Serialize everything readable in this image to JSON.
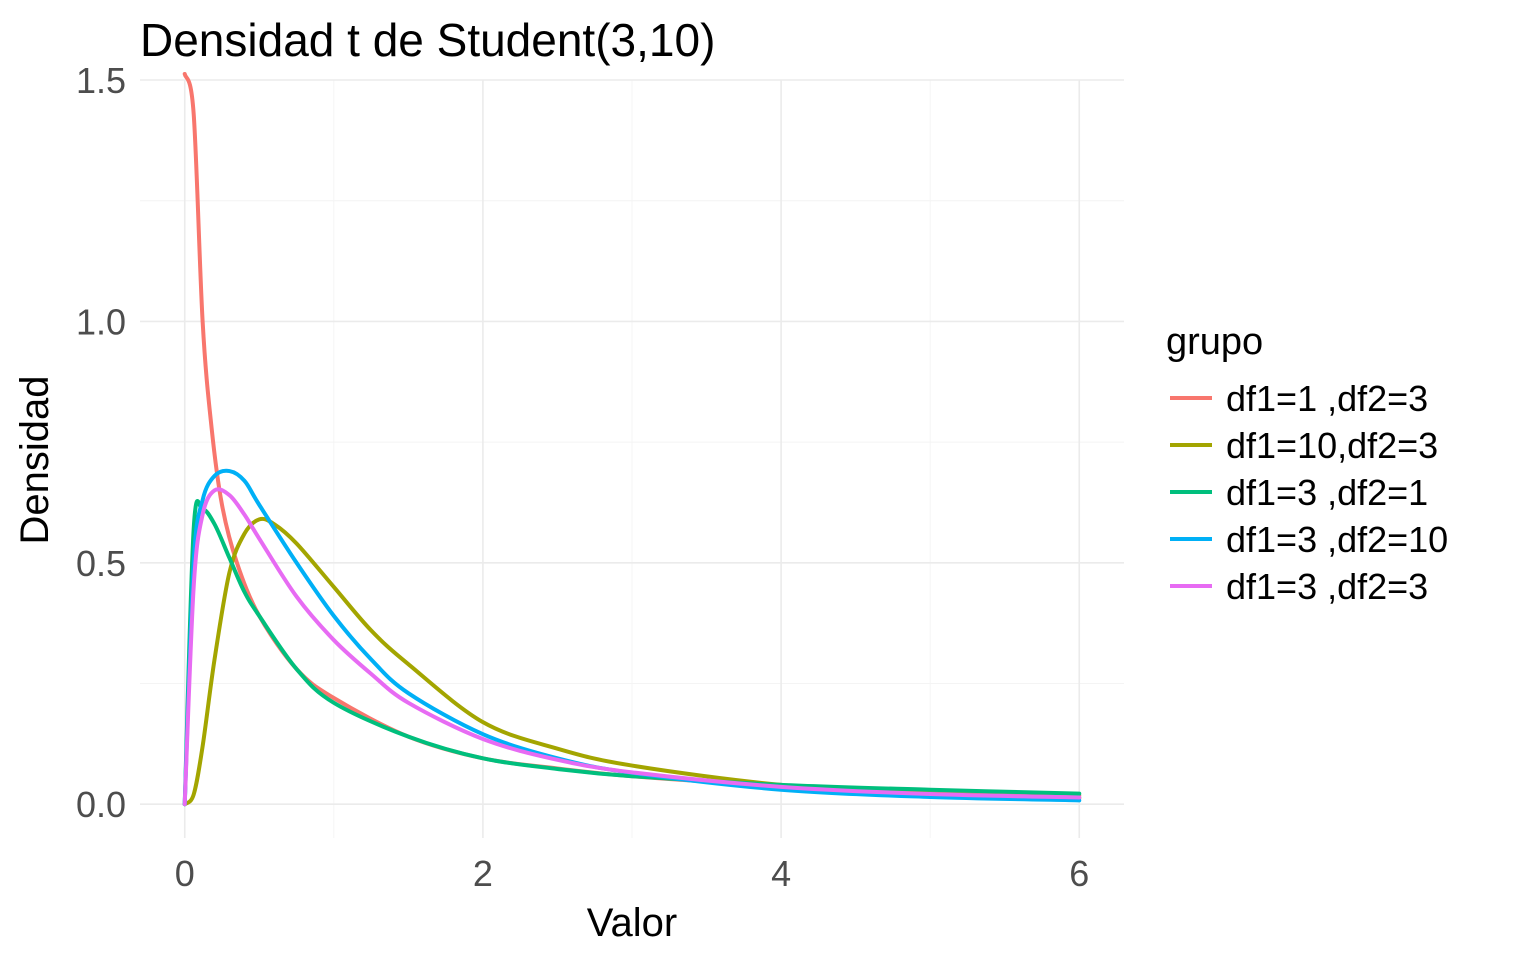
{
  "chart_data": {
    "type": "line",
    "title": "Densidad t de Student(3,10)",
    "xlabel": "Valor",
    "ylabel": "Densidad",
    "xlim": [
      -0.3,
      6.3
    ],
    "ylim": [
      -0.07,
      1.5
    ],
    "x_ticks": [
      0,
      2,
      4,
      6
    ],
    "x_tick_labels": [
      "0",
      "2",
      "4",
      "6"
    ],
    "y_ticks": [
      0,
      0.5,
      1,
      1.5
    ],
    "y_tick_labels": [
      "0.0",
      "0.5",
      "1.0",
      "1.5"
    ],
    "grid": true,
    "legend": {
      "title": "grupo",
      "position": "right"
    },
    "series": [
      {
        "name": "df1=1 ,df2=3",
        "color": "#F8766D",
        "x": [
          0.0,
          0.06,
          0.12,
          0.18,
          0.25,
          0.35,
          0.5,
          0.75,
          1.0,
          1.5,
          2.0,
          2.5,
          3.0,
          4.0,
          5.0,
          6.0
        ],
        "y": [
          1.52,
          1.43,
          1.0,
          0.78,
          0.62,
          0.5,
          0.39,
          0.28,
          0.22,
          0.14,
          0.095,
          0.074,
          0.058,
          0.038,
          0.025,
          0.018
        ]
      },
      {
        "name": "df1=10,df2=3",
        "color": "#A3A500",
        "x": [
          0.0,
          0.06,
          0.12,
          0.2,
          0.3,
          0.4,
          0.5,
          0.6,
          0.75,
          1.0,
          1.25,
          1.5,
          2.0,
          2.5,
          3.0,
          4.0,
          5.0,
          6.0
        ],
        "y": [
          0.0,
          0.02,
          0.12,
          0.3,
          0.48,
          0.56,
          0.59,
          0.58,
          0.54,
          0.45,
          0.36,
          0.29,
          0.17,
          0.115,
          0.08,
          0.04,
          0.022,
          0.013
        ]
      },
      {
        "name": "df1=3 ,df2=1",
        "color": "#00BF7D",
        "x": [
          0.0,
          0.06,
          0.12,
          0.2,
          0.3,
          0.4,
          0.5,
          0.75,
          1.0,
          1.5,
          2.0,
          2.5,
          3.0,
          4.0,
          5.0,
          6.0
        ],
        "y": [
          0.0,
          0.57,
          0.61,
          0.58,
          0.51,
          0.44,
          0.39,
          0.28,
          0.21,
          0.14,
          0.095,
          0.073,
          0.058,
          0.04,
          0.03,
          0.022
        ]
      },
      {
        "name": "df1=3 ,df2=10",
        "color": "#00B0F6",
        "x": [
          0.0,
          0.06,
          0.12,
          0.2,
          0.3,
          0.4,
          0.5,
          0.75,
          1.0,
          1.25,
          1.5,
          2.0,
          2.5,
          3.0,
          4.0,
          5.0,
          6.0
        ],
        "y": [
          0.0,
          0.5,
          0.63,
          0.68,
          0.69,
          0.67,
          0.62,
          0.5,
          0.39,
          0.3,
          0.23,
          0.145,
          0.095,
          0.065,
          0.03,
          0.015,
          0.008
        ]
      },
      {
        "name": "df1=3 ,df2=3",
        "color": "#E76BF3",
        "x": [
          0.0,
          0.06,
          0.12,
          0.2,
          0.3,
          0.4,
          0.5,
          0.75,
          1.0,
          1.25,
          1.5,
          2.0,
          2.5,
          3.0,
          4.0,
          5.0,
          6.0
        ],
        "y": [
          0.0,
          0.45,
          0.6,
          0.65,
          0.64,
          0.6,
          0.55,
          0.43,
          0.34,
          0.27,
          0.21,
          0.135,
          0.092,
          0.066,
          0.036,
          0.021,
          0.014
        ]
      }
    ]
  }
}
